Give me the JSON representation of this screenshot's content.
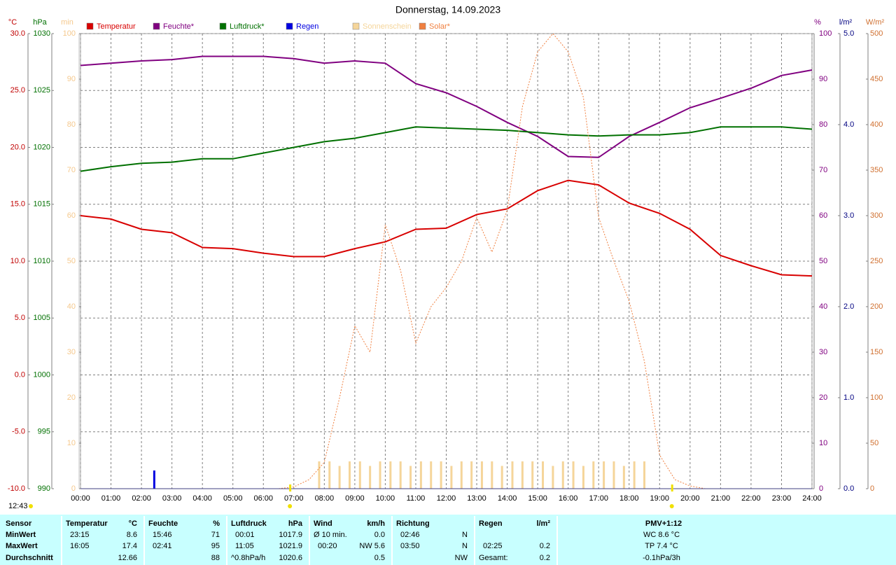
{
  "chart_data": {
    "type": "line",
    "title": "Donnerstag, 14.09.2023",
    "timestamp": "12:43",
    "xlim": [
      0,
      24
    ],
    "xticks": [
      {
        "value": 0,
        "label": "00:00"
      },
      {
        "value": 1,
        "label": "01:00"
      },
      {
        "value": 2,
        "label": "02:00"
      },
      {
        "value": 3,
        "label": "03:00"
      },
      {
        "value": 4,
        "label": "04:00"
      },
      {
        "value": 5,
        "label": "05:00"
      },
      {
        "value": 6,
        "label": "06:00"
      },
      {
        "value": 7,
        "label": "07:00"
      },
      {
        "value": 8,
        "label": "08:00"
      },
      {
        "value": 9,
        "label": "09:00"
      },
      {
        "value": 10,
        "label": "10:00"
      },
      {
        "value": 11,
        "label": "11:00"
      },
      {
        "value": 12,
        "label": "12:00"
      },
      {
        "value": 13,
        "label": "13:00"
      },
      {
        "value": 14,
        "label": "14:00"
      },
      {
        "value": 15,
        "label": "15:00"
      },
      {
        "value": 16,
        "label": "16:00"
      },
      {
        "value": 17,
        "label": "17:00"
      },
      {
        "value": 18,
        "label": "18:00"
      },
      {
        "value": 19,
        "label": "19:00"
      },
      {
        "value": 20,
        "label": "20:00"
      },
      {
        "value": 21,
        "label": "21:00"
      },
      {
        "value": 22,
        "label": "22:00"
      },
      {
        "value": 23,
        "label": "23:00"
      },
      {
        "value": 24,
        "label": "24:00"
      }
    ],
    "grid": true,
    "sun_markers": [
      6.87,
      19.4
    ],
    "axes": [
      {
        "unit": "°C",
        "color": "#c00000",
        "lim": [
          -10,
          30
        ],
        "ticks": [
          {
            "value": -10,
            "label": "-10.0"
          },
          {
            "value": -5,
            "label": "-5.0"
          },
          {
            "value": 0,
            "label": "0.0"
          },
          {
            "value": 5,
            "label": "5.0"
          },
          {
            "value": 10,
            "label": "10.0"
          },
          {
            "value": 15,
            "label": "15.0"
          },
          {
            "value": 20,
            "label": "20.0"
          },
          {
            "value": 25,
            "label": "25.0"
          },
          {
            "value": 30,
            "label": "30.0"
          }
        ]
      },
      {
        "unit": "hPa",
        "color": "#007000",
        "lim": [
          990,
          1030
        ],
        "ticks": [
          990,
          995,
          1000,
          1005,
          1010,
          1015,
          1020,
          1025,
          1030
        ]
      },
      {
        "unit": "min",
        "color": "#f5c88c",
        "lim": [
          0,
          100
        ],
        "ticks": [
          0,
          10,
          20,
          30,
          40,
          50,
          60,
          70,
          80,
          90,
          100
        ]
      },
      {
        "unit": "%",
        "color": "#800080",
        "lim": [
          0,
          100
        ],
        "ticks": [
          0,
          10,
          20,
          30,
          40,
          50,
          60,
          70,
          80,
          90,
          100
        ]
      },
      {
        "unit": "l/m²",
        "color": "#000080",
        "lim": [
          0,
          5
        ],
        "ticks": [
          {
            "value": 0,
            "label": "0.0"
          },
          {
            "value": 1,
            "label": "1.0"
          },
          {
            "value": 2,
            "label": "2.0"
          },
          {
            "value": 3,
            "label": "3.0"
          },
          {
            "value": 4,
            "label": "4.0"
          },
          {
            "value": 5,
            "label": "5.0"
          }
        ]
      },
      {
        "unit": "W/m²",
        "color": "#d07030",
        "lim": [
          0,
          500
        ],
        "ticks": [
          0,
          50,
          100,
          150,
          200,
          250,
          300,
          350,
          400,
          450,
          500
        ]
      }
    ],
    "series": [
      {
        "name": "Temperatur",
        "color": "#d80000",
        "kind": "line",
        "axis": 0,
        "x": [
          0,
          1,
          2,
          3,
          4,
          5,
          6,
          7,
          8,
          9,
          10,
          11,
          12,
          13,
          14,
          15,
          16,
          17,
          18,
          19,
          20,
          21,
          22,
          23,
          24
        ],
        "values": [
          14.0,
          13.7,
          12.8,
          12.5,
          11.2,
          11.1,
          10.7,
          10.4,
          10.4,
          11.1,
          11.7,
          12.8,
          12.9,
          14.1,
          14.6,
          16.2,
          17.1,
          16.7,
          15.1,
          14.2,
          12.8,
          10.5,
          9.6,
          8.8,
          8.7
        ]
      },
      {
        "name": "Feuchte*",
        "color": "#800080",
        "kind": "line",
        "axis": 3,
        "x": [
          0,
          1,
          2,
          3,
          4,
          5,
          6,
          7,
          8,
          9,
          10,
          11,
          12,
          13,
          14,
          15,
          16,
          17,
          18,
          19,
          20,
          21,
          22,
          23,
          24
        ],
        "values": [
          93,
          93.5,
          94,
          94.3,
          95,
          95,
          95,
          94.5,
          93.5,
          94,
          93.5,
          89,
          87,
          84,
          80.5,
          77.4,
          73,
          72.8,
          77.4,
          80.5,
          83.7,
          85.8,
          88,
          90.8,
          92
        ]
      },
      {
        "name": "Luftdruck*",
        "color": "#007000",
        "kind": "line",
        "axis": 1,
        "x": [
          0,
          1,
          2,
          3,
          4,
          5,
          6,
          7,
          8,
          9,
          10,
          11,
          12,
          13,
          14,
          15,
          16,
          17,
          18,
          19,
          20,
          21,
          22,
          23,
          24
        ],
        "values": [
          1017.9,
          1018.3,
          1018.6,
          1018.7,
          1019.0,
          1019.0,
          1019.5,
          1020.0,
          1020.5,
          1020.8,
          1021.3,
          1021.8,
          1021.7,
          1021.6,
          1021.5,
          1021.3,
          1021.1,
          1021.0,
          1021.1,
          1021.1,
          1021.3,
          1021.8,
          1021.8,
          1021.8,
          1021.6
        ]
      },
      {
        "name": "Regen",
        "color": "#0000e0",
        "kind": "bar",
        "axis": 4,
        "x": [
          2.42
        ],
        "values": [
          0.2
        ]
      },
      {
        "name": "Sonnenschein",
        "color": "#f5d59a",
        "kind": "bar",
        "axis": 2,
        "x": [
          7.83,
          8.17,
          8.5,
          8.83,
          9.17,
          9.5,
          9.83,
          10.17,
          10.5,
          10.83,
          11.17,
          11.5,
          11.83,
          12.17,
          12.5,
          12.83,
          13.17,
          13.5,
          13.83,
          14.17,
          14.5,
          14.83,
          15.17,
          15.5,
          15.83,
          16.17,
          16.5,
          16.83,
          17.17,
          17.5,
          17.83,
          18.17,
          18.5
        ],
        "values": [
          6,
          6,
          5,
          6,
          6,
          5,
          6,
          6,
          6,
          5,
          6,
          6,
          6,
          5,
          6,
          6,
          6,
          6,
          5,
          6,
          6,
          6,
          6,
          5,
          6,
          6,
          5,
          6,
          6,
          6,
          5,
          6,
          6
        ]
      },
      {
        "name": "Solar*",
        "color": "#f08040",
        "kind": "dotted",
        "axis": 5,
        "x": [
          6.5,
          7,
          7.5,
          8,
          8.5,
          9,
          9.5,
          10,
          10.5,
          11,
          11.5,
          12,
          12.5,
          13,
          13.5,
          14,
          14.5,
          15,
          15.5,
          16,
          16.5,
          17,
          17.5,
          18,
          18.5,
          19,
          19.5,
          20,
          20.5
        ],
        "values": [
          0,
          2,
          10,
          29,
          100,
          179,
          150,
          290,
          240,
          160,
          200,
          221,
          250,
          298,
          260,
          306,
          420,
          480,
          500,
          480,
          430,
          298,
          250,
          206,
          140,
          37,
          10,
          3,
          0
        ]
      }
    ]
  },
  "table": {
    "sensor": "Sensor",
    "columns": [
      {
        "name": "Temperatur",
        "unit": "°C"
      },
      {
        "name": "Feuchte",
        "unit": "%"
      },
      {
        "name": "Luftdruck",
        "unit": "hPa"
      },
      {
        "name": "Wind",
        "unit": "km/h"
      },
      {
        "name": "Richtung",
        "unit": null
      },
      {
        "name": "Regen",
        "unit": "l/m²"
      }
    ],
    "pmv_title": "PMV+1:12",
    "rows": [
      {
        "label": "MinWert",
        "cells": [
          [
            "23:15",
            "8.6"
          ],
          [
            "15:46",
            "71"
          ],
          [
            "00:01",
            "1017.9"
          ],
          [
            "Ø 10 min.",
            "0.0"
          ],
          [
            "02:46",
            "N"
          ],
          [
            null,
            null
          ]
        ],
        "pmv": "WC 8.6 °C"
      },
      {
        "label": "MaxWert",
        "cells": [
          [
            "16:05",
            "17.4"
          ],
          [
            "02:41",
            "95"
          ],
          [
            "11:05",
            "1021.9"
          ],
          [
            "00:20",
            "NW 5.6"
          ],
          [
            "03:50",
            "N"
          ],
          [
            "02:25",
            "0.2"
          ]
        ],
        "pmv": "TP 7.4 °C"
      },
      {
        "label": "Durchschnitt",
        "cells": [
          [
            null,
            "12.66"
          ],
          [
            null,
            "88"
          ],
          [
            "^0.8hPa/h",
            "1020.6"
          ],
          [
            null,
            "0.5"
          ],
          [
            null,
            "NW"
          ],
          [
            "Gesamt:",
            "0.2"
          ]
        ],
        "pmv": "-0.1hPa/3h"
      }
    ]
  }
}
